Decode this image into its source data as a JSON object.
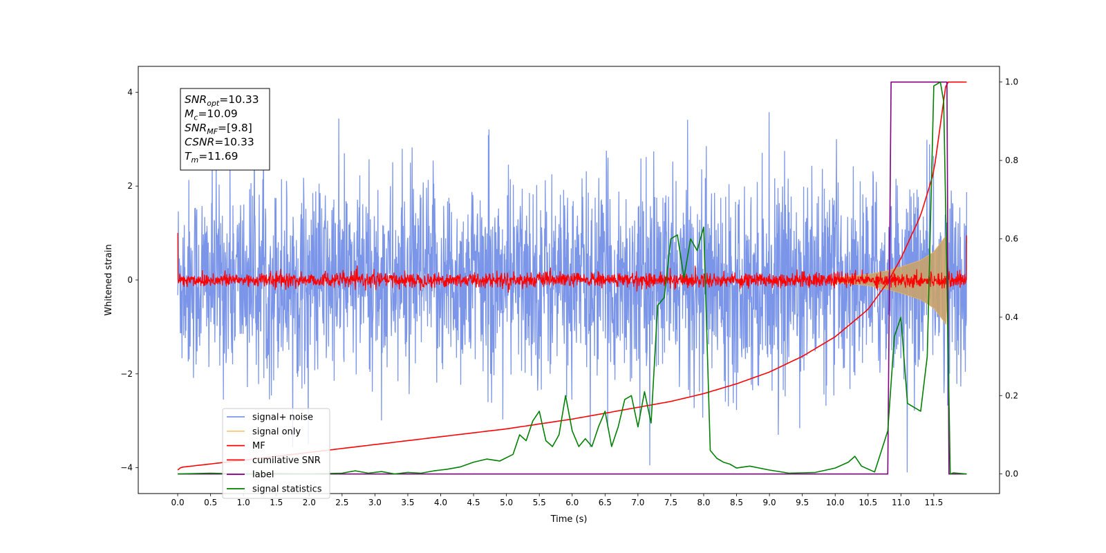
{
  "chart_data": {
    "type": "line",
    "title": "",
    "xlabel": "Time (s)",
    "ylabel": "Whitened strain",
    "xlim": [
      -0.6,
      12.5
    ],
    "ylim": [
      -4.55,
      4.55
    ],
    "ylim_right": [
      -0.05,
      1.04
    ],
    "grid": false,
    "legend_position": "lower-left",
    "x_ticks": [
      "0.0",
      "0.5",
      "1.0",
      "1.5",
      "2.0",
      "2.5",
      "3.0",
      "3.5",
      "4.0",
      "4.5",
      "5.0",
      "5.5",
      "6.0",
      "6.5",
      "7.0",
      "7.5",
      "8.0",
      "8.5",
      "9.0",
      "9.5",
      "10.0",
      "10.5",
      "11.0",
      "11.5"
    ],
    "y_ticks_left": [
      "4",
      "2",
      "0",
      "−2",
      "−4"
    ],
    "y_ticks_right": [
      "1.0",
      "0.8",
      "0.6",
      "0.4",
      "0.2",
      "0.0"
    ],
    "annotations": [
      {
        "main": "SNR",
        "sub": "opt",
        "rest": "=10.33"
      },
      {
        "main": "M",
        "sub": "c",
        "rest": "=10.09"
      },
      {
        "main": "SNR",
        "sub": "MF",
        "rest": "=[9.8]"
      },
      {
        "main": "CSNR",
        "sub": "",
        "rest": "=10.33"
      },
      {
        "main": "T",
        "sub": "m",
        "rest": "=11.69"
      }
    ],
    "legend": [
      {
        "label": "signal+ noise",
        "color": "#7b95e8"
      },
      {
        "label": "signal only",
        "color": "#f5c97a"
      },
      {
        "label": "MF",
        "color": "#ff0000"
      },
      {
        "label": "cumilative SNR",
        "color": "#ff0000"
      },
      {
        "label": "label",
        "color": "#800080"
      },
      {
        "label": "signal statistics",
        "color": "#008000"
      }
    ],
    "series": [
      {
        "name": "signal+ noise",
        "axis": "left",
        "style": "noise",
        "x_range": [
          0.0,
          12.0
        ],
        "amplitude_std": 1.0,
        "min": -4.1,
        "max": 4.1
      },
      {
        "name": "signal only",
        "axis": "left",
        "style": "envelope",
        "x": [
          10.0,
          10.5,
          10.8,
          11.0,
          11.3,
          11.5,
          11.69,
          11.7,
          11.75
        ],
        "y": [
          0.05,
          0.12,
          0.2,
          0.28,
          0.42,
          0.6,
          0.95,
          0.4,
          0.0
        ]
      },
      {
        "name": "MF",
        "axis": "left",
        "style": "noise",
        "x_range": [
          0.0,
          12.0
        ],
        "amplitude_std": 0.08,
        "start_spike": 1.0,
        "end_spike": 0.95
      },
      {
        "name": "cumilative SNR",
        "axis": "right",
        "x": [
          0.0,
          0.05,
          1.0,
          2.0,
          3.0,
          4.0,
          5.0,
          6.0,
          7.0,
          7.5,
          8.0,
          8.5,
          9.0,
          9.5,
          10.0,
          10.5,
          10.8,
          11.0,
          11.3,
          11.5,
          11.69,
          12.0
        ],
        "y": [
          0.01,
          0.017,
          0.035,
          0.055,
          0.075,
          0.095,
          0.115,
          0.14,
          0.17,
          0.185,
          0.205,
          0.23,
          0.26,
          0.3,
          0.35,
          0.42,
          0.49,
          0.55,
          0.66,
          0.77,
          1.0,
          1.0
        ]
      },
      {
        "name": "label",
        "axis": "right",
        "x": [
          0.0,
          10.8,
          10.85,
          11.7,
          11.73,
          12.0
        ],
        "y": [
          0.0,
          0.0,
          1.0,
          1.0,
          0.0,
          0.0
        ]
      },
      {
        "name": "signal statistics",
        "axis": "right",
        "x": [
          0.0,
          0.5,
          1.0,
          1.5,
          2.0,
          2.5,
          2.7,
          2.9,
          3.1,
          3.3,
          3.5,
          3.7,
          3.9,
          4.1,
          4.3,
          4.5,
          4.7,
          4.9,
          5.1,
          5.2,
          5.3,
          5.4,
          5.5,
          5.6,
          5.7,
          5.8,
          5.9,
          6.0,
          6.1,
          6.2,
          6.3,
          6.4,
          6.5,
          6.6,
          6.7,
          6.8,
          6.9,
          7.0,
          7.1,
          7.2,
          7.3,
          7.4,
          7.5,
          7.6,
          7.7,
          7.8,
          7.9,
          8.0,
          8.1,
          8.2,
          8.3,
          8.4,
          8.5,
          8.7,
          9.0,
          9.3,
          9.5,
          9.7,
          10.0,
          10.2,
          10.3,
          10.4,
          10.6,
          10.8,
          10.9,
          11.0,
          11.1,
          11.2,
          11.3,
          11.4,
          11.5,
          11.6,
          11.65,
          11.7,
          11.75,
          11.8,
          12.0
        ],
        "y": [
          0.0,
          0.002,
          0.0,
          0.001,
          0.0,
          0.002,
          0.008,
          0.002,
          0.006,
          0.0,
          0.004,
          0.002,
          0.008,
          0.012,
          0.018,
          0.03,
          0.038,
          0.033,
          0.05,
          0.1,
          0.085,
          0.135,
          0.16,
          0.085,
          0.07,
          0.1,
          0.2,
          0.11,
          0.07,
          0.09,
          0.07,
          0.12,
          0.16,
          0.07,
          0.12,
          0.19,
          0.2,
          0.12,
          0.21,
          0.13,
          0.43,
          0.45,
          0.6,
          0.61,
          0.5,
          0.6,
          0.57,
          0.63,
          0.06,
          0.04,
          0.03,
          0.025,
          0.015,
          0.02,
          0.01,
          0.002,
          0.003,
          0.004,
          0.015,
          0.03,
          0.045,
          0.02,
          0.005,
          0.11,
          0.35,
          0.4,
          0.18,
          0.17,
          0.16,
          0.3,
          0.99,
          1.0,
          0.95,
          0.5,
          0.0,
          0.003,
          0.0
        ]
      }
    ]
  }
}
